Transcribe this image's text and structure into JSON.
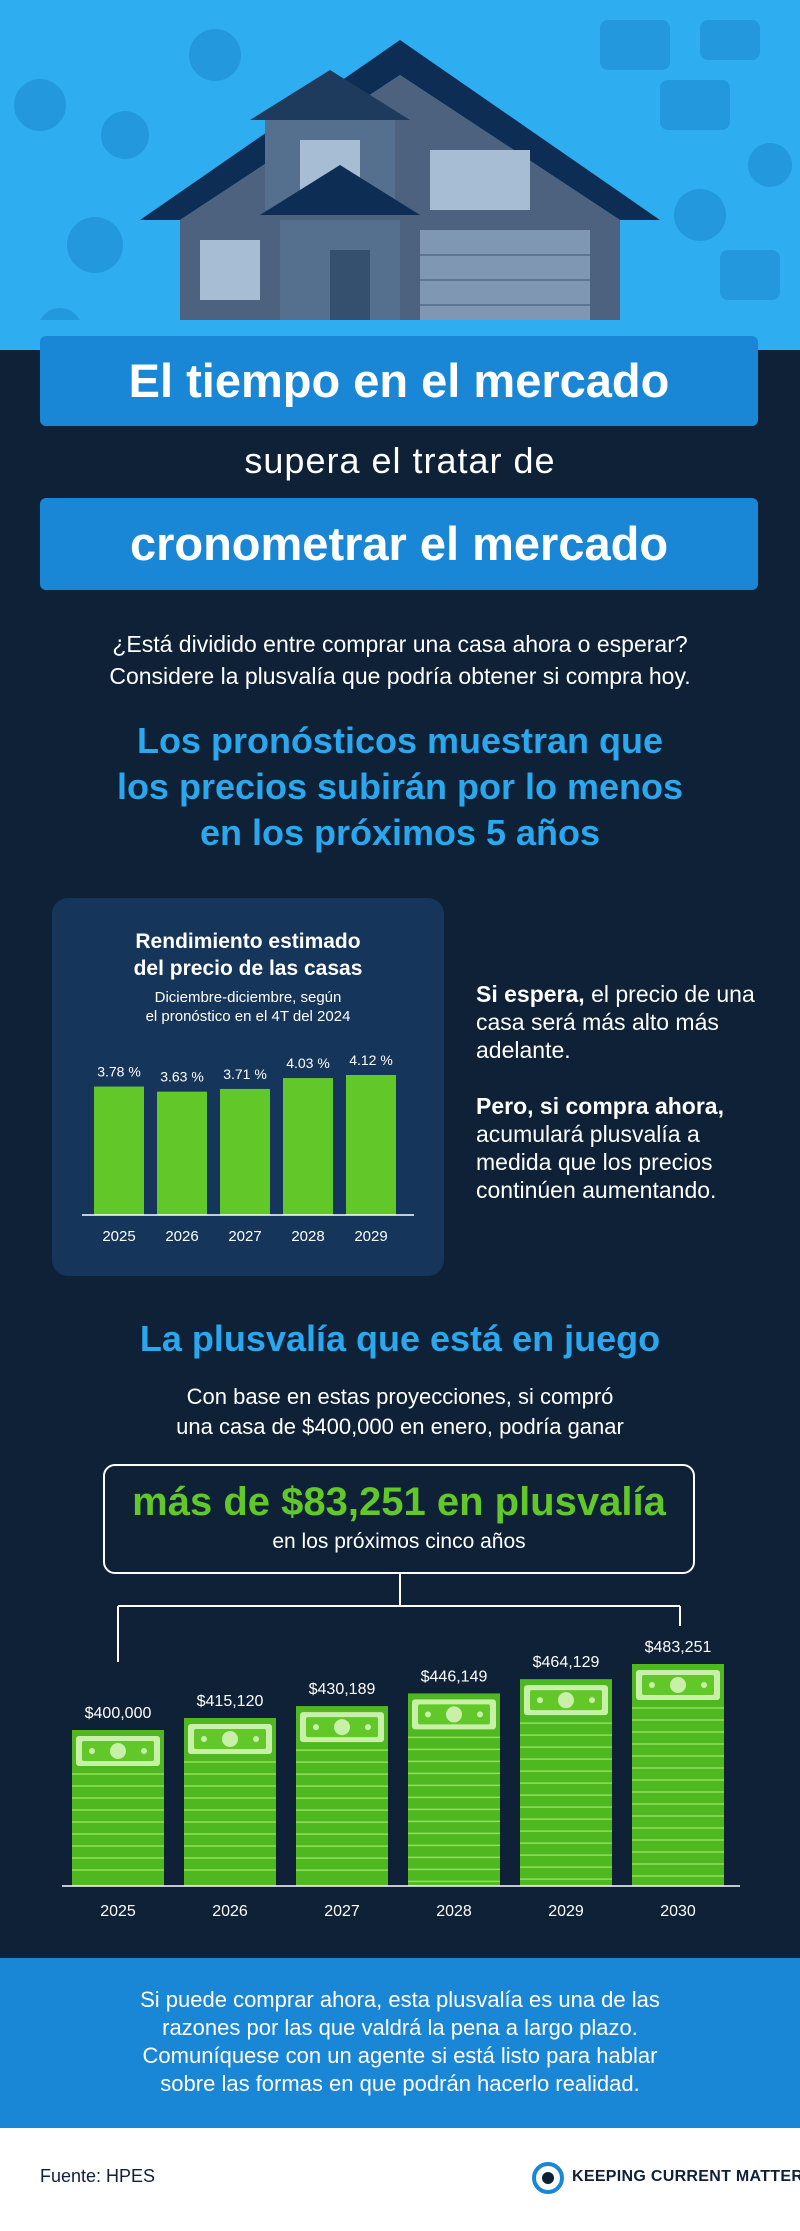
{
  "title_line1": "El tiempo en el mercado",
  "subtitle": "supera el tratar de",
  "title_line2": "cronometrar el mercado",
  "intro": [
    "¿Está dividido entre comprar una casa ahora o esperar?",
    "Considere la plusvalía que podría obtener si compra hoy."
  ],
  "headline": [
    "Los pronósticos muestran que",
    "los precios subirán por lo menos",
    "en los próximos 5 años"
  ],
  "side_text": {
    "p1_bold": "Si espera,",
    "p1_rest": " el precio de una casa será más alto más adelante.",
    "p2_bold": "Pero, si compra ahora,",
    "p2_rest": " acumulará plusvalía a medida que los precios continúen aumentando."
  },
  "section2_title": "La plusvalía que está en juego",
  "section2_text": [
    "Con base en estas proyecciones, si compró",
    "una casa de $400,000 en enero, podría ganar"
  ],
  "gain_main": "más de $83,251 en plusvalía",
  "gain_sub": "en los próximos cinco años",
  "footer_text": [
    "Si puede comprar ahora, esta plusvalía es una de las",
    "razones por las que valdrá la pena a largo plazo.",
    "Comuníquese con un agente si está listo para hablar",
    "sobre las formas en que podrán hacerlo realidad."
  ],
  "source": "Fuente: HPES",
  "logo_text": "KEEPING CURRENT MATTERS",
  "colors": {
    "blue": "#1a86d6",
    "light_blue": "#2ba7ee",
    "green": "#62c82a",
    "navy": "#0e2137",
    "card": "#15355a"
  },
  "chart_data": [
    {
      "type": "bar",
      "title": "Rendimiento estimado del precio de las casas",
      "subtitle": "Diciembre-diciembre, según el pronóstico en el 4T del 2024",
      "categories": [
        "2025",
        "2026",
        "2027",
        "2028",
        "2029"
      ],
      "values": [
        3.78,
        3.63,
        3.71,
        4.03,
        4.12
      ],
      "labels": [
        "3.78 %",
        "3.63 %",
        "3.71 %",
        "4.03 %",
        "4.12 %"
      ]
    },
    {
      "type": "bar",
      "categories": [
        "2025",
        "2026",
        "2027",
        "2028",
        "2029",
        "2030"
      ],
      "values": [
        400000,
        415120,
        430189,
        446149,
        464129,
        483251
      ],
      "labels": [
        "$400,000",
        "$415,120",
        "$430,189",
        "$446,149",
        "$464,129",
        "$483,251"
      ]
    }
  ]
}
